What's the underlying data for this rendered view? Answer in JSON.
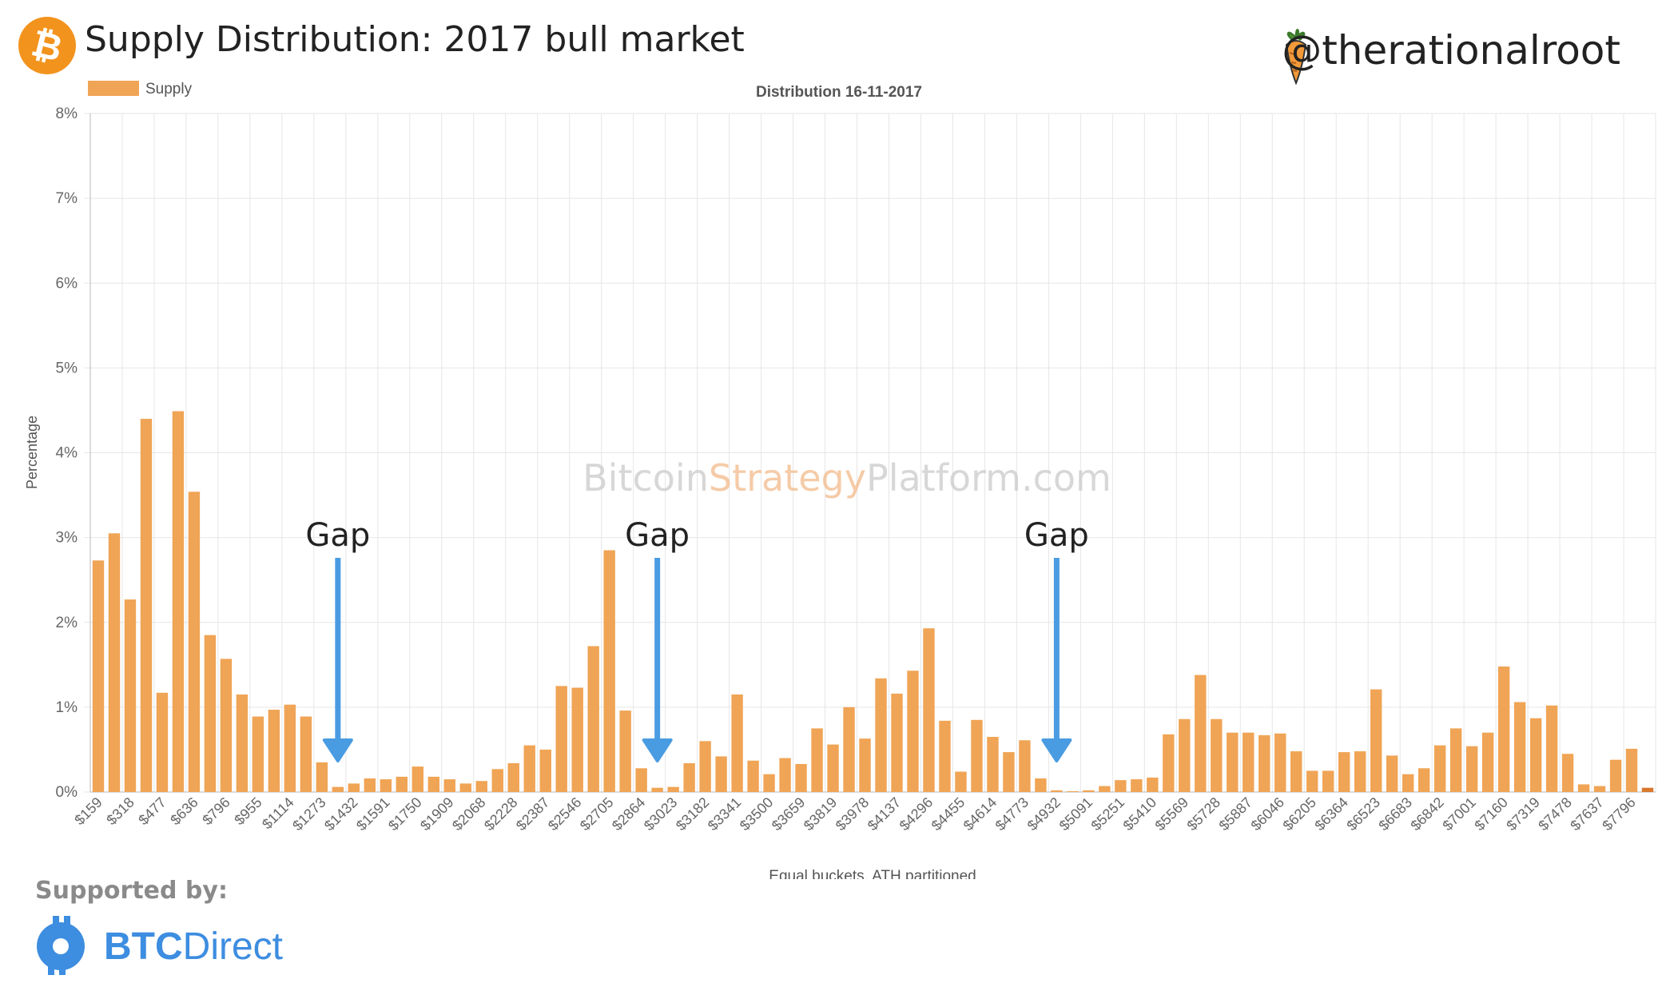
{
  "header": {
    "title": "Supply Distribution: 2017 bull market",
    "handle": "@therationalroot"
  },
  "footer": {
    "supported_label": "Supported by:",
    "sponsor_bold": "BTC",
    "sponsor_rest": "Direct"
  },
  "watermark": {
    "part1": "Bitcoin",
    "part2": "Strategy",
    "part3": "Platform.com"
  },
  "colors": {
    "bar": "#f0a455",
    "bar_dark": "#d9772e",
    "arrow": "#4a9ce2",
    "btc_orange": "#f2931d",
    "sponsor_blue": "#3d8de0"
  },
  "chart_data": {
    "type": "bar",
    "title": "Distribution 16-11-2017",
    "xlabel": "Equal buckets, ATH partitioned",
    "ylabel": "Percentage",
    "legend": {
      "label": "Supply",
      "position": "top-left"
    },
    "ylim": [
      0,
      8
    ],
    "yticks": [
      "0%",
      "1%",
      "2%",
      "3%",
      "4%",
      "5%",
      "6%",
      "7%",
      "8%"
    ],
    "grid": true,
    "tick_labels": [
      "$159",
      "$318",
      "$477",
      "$636",
      "$796",
      "$955",
      "$1114",
      "$1273",
      "$1432",
      "$1591",
      "$1750",
      "$1909",
      "$2068",
      "$2228",
      "$2387",
      "$2546",
      "$2705",
      "$2864",
      "$3023",
      "$3182",
      "$3341",
      "$3500",
      "$3659",
      "$3819",
      "$3978",
      "$4137",
      "$4296",
      "$4455",
      "$4614",
      "$4773",
      "$4932",
      "$5091",
      "$5251",
      "$5410",
      "$5569",
      "$5728",
      "$5887",
      "$6046",
      "$6205",
      "$6364",
      "$6523",
      "$6683",
      "$6842",
      "$7001",
      "$7160",
      "$7319",
      "$7478",
      "$7637",
      "$7796"
    ],
    "values": [
      2.73,
      3.05,
      2.27,
      4.4,
      1.17,
      4.49,
      3.54,
      1.85,
      1.57,
      1.15,
      0.89,
      0.97,
      1.03,
      0.89,
      0.35,
      0.06,
      0.1,
      0.16,
      0.15,
      0.18,
      0.3,
      0.18,
      0.15,
      0.1,
      0.13,
      0.27,
      0.34,
      0.55,
      0.5,
      1.25,
      1.23,
      1.72,
      2.85,
      0.96,
      0.28,
      0.05,
      0.06,
      0.34,
      0.6,
      0.42,
      1.15,
      0.37,
      0.21,
      0.4,
      0.33,
      0.75,
      0.56,
      1.0,
      0.63,
      1.34,
      1.16,
      1.43,
      1.93,
      0.84,
      0.24,
      0.85,
      0.65,
      0.47,
      0.61,
      0.16,
      0.02,
      0.01,
      0.02,
      0.07,
      0.14,
      0.15,
      0.17,
      0.68,
      0.86,
      1.38,
      0.86,
      0.7,
      0.7,
      0.67,
      0.69,
      0.48,
      0.25,
      0.25,
      0.47,
      0.48,
      1.21,
      0.43,
      0.21,
      0.28,
      0.55,
      0.75,
      0.54,
      0.7,
      1.48,
      1.06,
      0.87,
      1.02,
      0.45,
      0.09,
      0.07,
      0.38,
      0.51,
      0.05
    ],
    "annotations": [
      {
        "text": "Gap",
        "at_bucket": 16
      },
      {
        "text": "Gap",
        "at_bucket": 36
      },
      {
        "text": "Gap",
        "at_bucket": 61
      }
    ]
  }
}
